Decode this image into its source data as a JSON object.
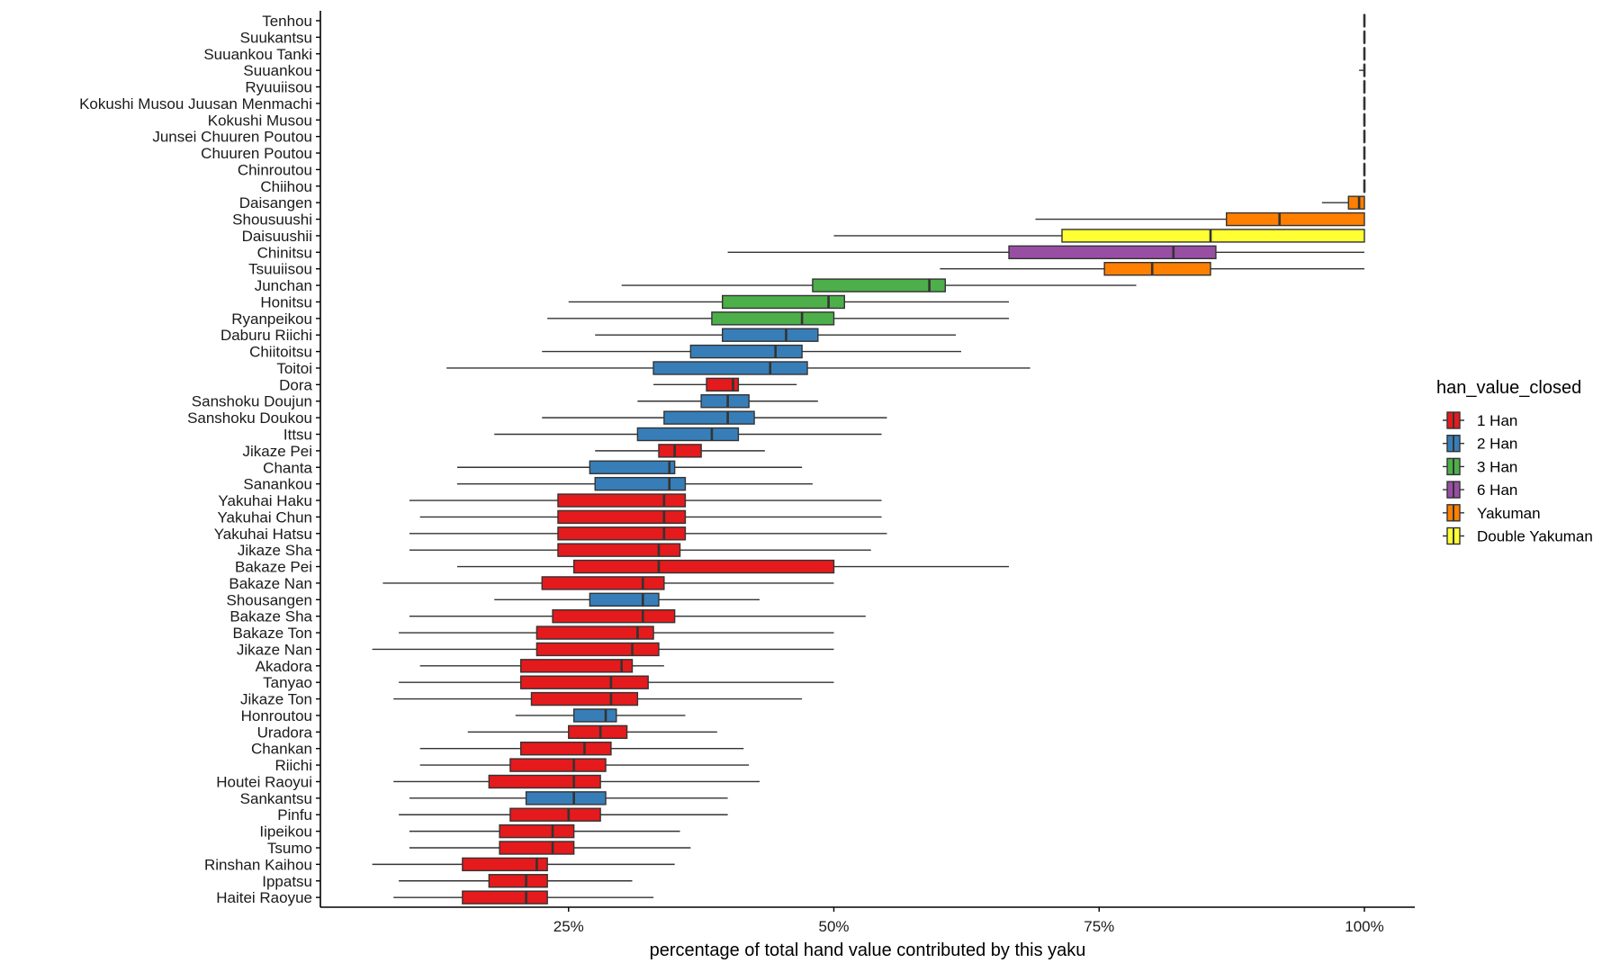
{
  "chart_data": {
    "type": "boxplot",
    "orientation": "horizontal",
    "title": "",
    "xlabel": "percentage of total hand value contributed by this yaku",
    "ylabel": "",
    "xlim": [
      0,
      100
    ],
    "x_ticks": [
      25,
      50,
      75,
      100
    ],
    "x_tick_labels": [
      "25%",
      "50%",
      "75%",
      "100%"
    ],
    "grid": false,
    "legend": {
      "title": "han_value_closed",
      "placement": "right",
      "entries": [
        {
          "label": "1 Han",
          "color": "#E41A1C"
        },
        {
          "label": "2 Han",
          "color": "#377EB8"
        },
        {
          "label": "3 Han",
          "color": "#4DAF4A"
        },
        {
          "label": "6 Han",
          "color": "#984EA3"
        },
        {
          "label": "Yakuman",
          "color": "#FF7F00"
        },
        {
          "label": "Double Yakuman",
          "color": "#FFFF33"
        }
      ]
    },
    "categories": [
      {
        "name": "Tenhou",
        "group": "Yakuman",
        "whisker_low": 100,
        "q1": 100,
        "median": 100,
        "q3": 100,
        "whisker_high": 100
      },
      {
        "name": "Suukantsu",
        "group": "Yakuman",
        "whisker_low": 100,
        "q1": 100,
        "median": 100,
        "q3": 100,
        "whisker_high": 100
      },
      {
        "name": "Suuankou Tanki",
        "group": "Double Yakuman",
        "whisker_low": 100,
        "q1": 100,
        "median": 100,
        "q3": 100,
        "whisker_high": 100
      },
      {
        "name": "Suuankou",
        "group": "Yakuman",
        "whisker_low": 99.5,
        "q1": 100,
        "median": 100,
        "q3": 100,
        "whisker_high": 100
      },
      {
        "name": "Ryuuiisou",
        "group": "Yakuman",
        "whisker_low": 100,
        "q1": 100,
        "median": 100,
        "q3": 100,
        "whisker_high": 100
      },
      {
        "name": "Kokushi Musou Juusan Menmachi",
        "group": "Double Yakuman",
        "whisker_low": 100,
        "q1": 100,
        "median": 100,
        "q3": 100,
        "whisker_high": 100
      },
      {
        "name": "Kokushi Musou",
        "group": "Yakuman",
        "whisker_low": 100,
        "q1": 100,
        "median": 100,
        "q3": 100,
        "whisker_high": 100
      },
      {
        "name": "Junsei Chuuren Poutou",
        "group": "Double Yakuman",
        "whisker_low": 100,
        "q1": 100,
        "median": 100,
        "q3": 100,
        "whisker_high": 100
      },
      {
        "name": "Chuuren Poutou",
        "group": "Yakuman",
        "whisker_low": 100,
        "q1": 100,
        "median": 100,
        "q3": 100,
        "whisker_high": 100
      },
      {
        "name": "Chinroutou",
        "group": "Yakuman",
        "whisker_low": 100,
        "q1": 100,
        "median": 100,
        "q3": 100,
        "whisker_high": 100
      },
      {
        "name": "Chiihou",
        "group": "Yakuman",
        "whisker_low": 100,
        "q1": 100,
        "median": 100,
        "q3": 100,
        "whisker_high": 100
      },
      {
        "name": "Daisangen",
        "group": "Yakuman",
        "whisker_low": 96,
        "q1": 98.5,
        "median": 99.5,
        "q3": 100,
        "whisker_high": 100
      },
      {
        "name": "Shousuushi",
        "group": "Yakuman",
        "whisker_low": 69,
        "q1": 87,
        "median": 92,
        "q3": 100,
        "whisker_high": 100
      },
      {
        "name": "Daisuushii",
        "group": "Double Yakuman",
        "whisker_low": 50,
        "q1": 71.5,
        "median": 85.5,
        "q3": 100,
        "whisker_high": 100
      },
      {
        "name": "Chinitsu",
        "group": "6 Han",
        "whisker_low": 40,
        "q1": 66.5,
        "median": 82,
        "q3": 86,
        "whisker_high": 100
      },
      {
        "name": "Tsuuiisou",
        "group": "Yakuman",
        "whisker_low": 60,
        "q1": 75.5,
        "median": 80,
        "q3": 85.5,
        "whisker_high": 100
      },
      {
        "name": "Junchan",
        "group": "3 Han",
        "whisker_low": 30,
        "q1": 48,
        "median": 59,
        "q3": 60.5,
        "whisker_high": 78.5
      },
      {
        "name": "Honitsu",
        "group": "3 Han",
        "whisker_low": 25,
        "q1": 39.5,
        "median": 49.5,
        "q3": 51,
        "whisker_high": 66.5
      },
      {
        "name": "Ryanpeikou",
        "group": "3 Han",
        "whisker_low": 23,
        "q1": 38.5,
        "median": 47,
        "q3": 50,
        "whisker_high": 66.5
      },
      {
        "name": "Daburu Riichi",
        "group": "2 Han",
        "whisker_low": 27.5,
        "q1": 39.5,
        "median": 45.5,
        "q3": 48.5,
        "whisker_high": 61.5
      },
      {
        "name": "Chiitoitsu",
        "group": "2 Han",
        "whisker_low": 22.5,
        "q1": 36.5,
        "median": 44.5,
        "q3": 47,
        "whisker_high": 62
      },
      {
        "name": "Toitoi",
        "group": "2 Han",
        "whisker_low": 13.5,
        "q1": 33,
        "median": 44,
        "q3": 47.5,
        "whisker_high": 68.5
      },
      {
        "name": "Dora",
        "group": "1 Han",
        "whisker_low": 33,
        "q1": 38,
        "median": 40.5,
        "q3": 41,
        "whisker_high": 46.5
      },
      {
        "name": "Sanshoku Doujun",
        "group": "2 Han",
        "whisker_low": 31.5,
        "q1": 37.5,
        "median": 40,
        "q3": 42,
        "whisker_high": 48.5
      },
      {
        "name": "Sanshoku Doukou",
        "group": "2 Han",
        "whisker_low": 22.5,
        "q1": 34,
        "median": 40,
        "q3": 42.5,
        "whisker_high": 55
      },
      {
        "name": "Ittsu",
        "group": "2 Han",
        "whisker_low": 18,
        "q1": 31.5,
        "median": 38.5,
        "q3": 41,
        "whisker_high": 54.5
      },
      {
        "name": "Jikaze Pei",
        "group": "1 Han",
        "whisker_low": 27.5,
        "q1": 33.5,
        "median": 35,
        "q3": 37.5,
        "whisker_high": 43.5
      },
      {
        "name": "Chanta",
        "group": "2 Han",
        "whisker_low": 14.5,
        "q1": 27,
        "median": 34.5,
        "q3": 35,
        "whisker_high": 47
      },
      {
        "name": "Sanankou",
        "group": "2 Han",
        "whisker_low": 14.5,
        "q1": 27.5,
        "median": 34.5,
        "q3": 36,
        "whisker_high": 48
      },
      {
        "name": "Yakuhai Haku",
        "group": "1 Han",
        "whisker_low": 10,
        "q1": 24,
        "median": 34,
        "q3": 36,
        "whisker_high": 54.5
      },
      {
        "name": "Yakuhai Chun",
        "group": "1 Han",
        "whisker_low": 11,
        "q1": 24,
        "median": 34,
        "q3": 36,
        "whisker_high": 54.5
      },
      {
        "name": "Yakuhai Hatsu",
        "group": "1 Han",
        "whisker_low": 10,
        "q1": 24,
        "median": 34,
        "q3": 36,
        "whisker_high": 55
      },
      {
        "name": "Jikaze Sha",
        "group": "1 Han",
        "whisker_low": 10,
        "q1": 24,
        "median": 33.5,
        "q3": 35.5,
        "whisker_high": 53.5
      },
      {
        "name": "Bakaze Pei",
        "group": "1 Han",
        "whisker_low": 14.5,
        "q1": 25.5,
        "median": 33.5,
        "q3": 50,
        "whisker_high": 66.5
      },
      {
        "name": "Bakaze Nan",
        "group": "1 Han",
        "whisker_low": 7.5,
        "q1": 22.5,
        "median": 32,
        "q3": 34,
        "whisker_high": 50
      },
      {
        "name": "Shousangen",
        "group": "2 Han",
        "whisker_low": 18,
        "q1": 27,
        "median": 32,
        "q3": 33.5,
        "whisker_high": 43
      },
      {
        "name": "Bakaze Sha",
        "group": "1 Han",
        "whisker_low": 10,
        "q1": 23.5,
        "median": 32,
        "q3": 35,
        "whisker_high": 53
      },
      {
        "name": "Bakaze Ton",
        "group": "1 Han",
        "whisker_low": 9,
        "q1": 22,
        "median": 31.5,
        "q3": 33,
        "whisker_high": 50
      },
      {
        "name": "Jikaze Nan",
        "group": "1 Han",
        "whisker_low": 6.5,
        "q1": 22,
        "median": 31,
        "q3": 33.5,
        "whisker_high": 50
      },
      {
        "name": "Akadora",
        "group": "1 Han",
        "whisker_low": 11,
        "q1": 20.5,
        "median": 30,
        "q3": 31,
        "whisker_high": 34
      },
      {
        "name": "Tanyao",
        "group": "1 Han",
        "whisker_low": 9,
        "q1": 20.5,
        "median": 29,
        "q3": 32.5,
        "whisker_high": 50
      },
      {
        "name": "Jikaze Ton",
        "group": "1 Han",
        "whisker_low": 8.5,
        "q1": 21.5,
        "median": 29,
        "q3": 31.5,
        "whisker_high": 47
      },
      {
        "name": "Honroutou",
        "group": "2 Han",
        "whisker_low": 20,
        "q1": 25.5,
        "median": 28.5,
        "q3": 29.5,
        "whisker_high": 36
      },
      {
        "name": "Uradora",
        "group": "1 Han",
        "whisker_low": 15.5,
        "q1": 25,
        "median": 28,
        "q3": 30.5,
        "whisker_high": 39
      },
      {
        "name": "Chankan",
        "group": "1 Han",
        "whisker_low": 11,
        "q1": 20.5,
        "median": 26.5,
        "q3": 29,
        "whisker_high": 41.5
      },
      {
        "name": "Riichi",
        "group": "1 Han",
        "whisker_low": 11,
        "q1": 19.5,
        "median": 25.5,
        "q3": 28.5,
        "whisker_high": 42
      },
      {
        "name": "Houtei Raoyui",
        "group": "1 Han",
        "whisker_low": 8.5,
        "q1": 17.5,
        "median": 25.5,
        "q3": 28,
        "whisker_high": 43
      },
      {
        "name": "Sankantsu",
        "group": "2 Han",
        "whisker_low": 10,
        "q1": 21,
        "median": 25.5,
        "q3": 28.5,
        "whisker_high": 40
      },
      {
        "name": "Pinfu",
        "group": "1 Han",
        "whisker_low": 9,
        "q1": 19.5,
        "median": 25,
        "q3": 28,
        "whisker_high": 40
      },
      {
        "name": "Iipeikou",
        "group": "1 Han",
        "whisker_low": 10,
        "q1": 18.5,
        "median": 23.5,
        "q3": 25.5,
        "whisker_high": 35.5
      },
      {
        "name": "Tsumo",
        "group": "1 Han",
        "whisker_low": 10,
        "q1": 18.5,
        "median": 23.5,
        "q3": 25.5,
        "whisker_high": 36.5
      },
      {
        "name": "Rinshan Kaihou",
        "group": "1 Han",
        "whisker_low": 6.5,
        "q1": 15,
        "median": 22,
        "q3": 23,
        "whisker_high": 35
      },
      {
        "name": "Ippatsu",
        "group": "1 Han",
        "whisker_low": 9,
        "q1": 17.5,
        "median": 21,
        "q3": 23,
        "whisker_high": 31
      },
      {
        "name": "Haitei Raoyue",
        "group": "1 Han",
        "whisker_low": 8.5,
        "q1": 15,
        "median": 21,
        "q3": 23,
        "whisker_high": 33
      }
    ]
  }
}
